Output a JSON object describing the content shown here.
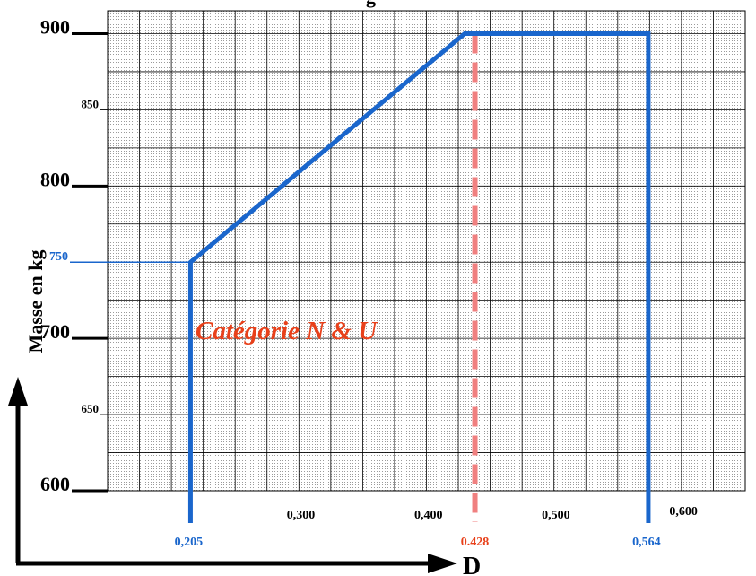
{
  "chart_data": {
    "type": "line",
    "title": "g",
    "category_label": "Catégorie N & U",
    "xlabel": "D",
    "ylabel": "Masse en kg",
    "xlim": [
      0.14,
      0.64
    ],
    "ylim": [
      600,
      915
    ],
    "x_grid_step": 0.025,
    "y_grid_step": 25,
    "grid": true,
    "y_ticks": [
      {
        "value": 600,
        "label": "600",
        "size": "major"
      },
      {
        "value": 650,
        "label": "650",
        "size": "minor"
      },
      {
        "value": 700,
        "label": "700",
        "size": "major"
      },
      {
        "value": 750,
        "label": "750",
        "size": "marked"
      },
      {
        "value": 800,
        "label": "800",
        "size": "major"
      },
      {
        "value": 850,
        "label": "850",
        "size": "minor"
      },
      {
        "value": 900,
        "label": "900",
        "size": "major"
      }
    ],
    "x_ticks": [
      {
        "value": 0.3,
        "label": "0,300"
      },
      {
        "value": 0.4,
        "label": "0,400"
      },
      {
        "value": 0.5,
        "label": "0,500"
      },
      {
        "value": 0.6,
        "label": "0,600"
      }
    ],
    "envelope": {
      "color": "#1a66cc",
      "points": [
        [
          0.205,
          600
        ],
        [
          0.205,
          750
        ],
        [
          0.42,
          900
        ],
        [
          0.564,
          900
        ],
        [
          0.564,
          600
        ]
      ]
    },
    "reference_line": {
      "y": 750,
      "color": "#1a66cc"
    },
    "marked_x": [
      {
        "value": 0.205,
        "label": "0,205",
        "color": "#1a66cc"
      },
      {
        "value": 0.428,
        "label": "0.428",
        "color": "#f08080",
        "label_color": "#e8401a",
        "dashed": true
      },
      {
        "value": 0.564,
        "label": "0,564",
        "color": "#1a66cc"
      }
    ],
    "colors": {
      "category": "#e8401a",
      "axis": "#000000",
      "grid": "#000000",
      "shade": "#e6e6e6"
    }
  }
}
